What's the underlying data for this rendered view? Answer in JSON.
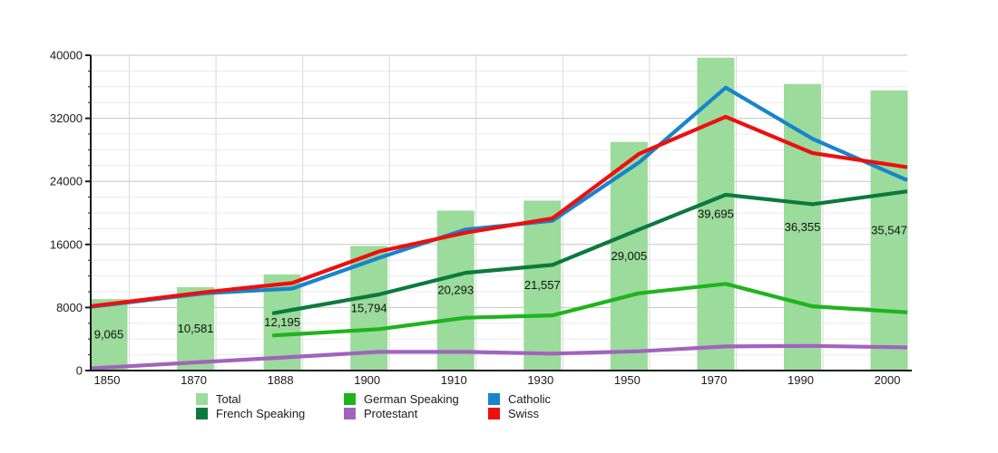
{
  "chart_data": {
    "type": "bar+line",
    "title": "",
    "xlabel": "",
    "ylabel": "",
    "x_tick_labels": [
      "1850",
      "1870",
      "1888",
      "1900",
      "1910",
      "1930",
      "1950",
      "1970",
      "1990",
      "2000"
    ],
    "y_tick_labels": [
      "0",
      "8000",
      "16000",
      "24000",
      "32000",
      "40000"
    ],
    "ylim": [
      0,
      40000
    ],
    "y_major_step": 8000,
    "y_minor_step": 2000,
    "grid": "horizontal major+minor, vertical per-category",
    "legend_position": "bottom",
    "bars": {
      "name": "Total",
      "color": "#9bdb9b",
      "values": [
        9065,
        10581,
        12195,
        15794,
        20293,
        21557,
        29005,
        39695,
        36355,
        35547
      ],
      "labels": [
        "9,065",
        "10,581",
        "12,195",
        "15,794",
        "20,293",
        "21,557",
        "29,005",
        "39,695",
        "36,355",
        "35,547"
      ]
    },
    "series": [
      {
        "name": "French Speaking",
        "color": "#0c7a3d",
        "values": [
          null,
          null,
          7700,
          9650,
          12400,
          13400,
          17900,
          22300,
          21100,
          22600
        ]
      },
      {
        "name": "German Speaking",
        "color": "#1eb41e",
        "values": [
          null,
          null,
          4600,
          5250,
          6700,
          7000,
          9800,
          11000,
          8150,
          7450
        ]
      },
      {
        "name": "Protestant",
        "color": "#a263bd",
        "values": [
          480,
          1100,
          1720,
          2370,
          2370,
          2150,
          2450,
          3060,
          3130,
          2950
        ]
      },
      {
        "name": "Catholic",
        "color": "#1884cb",
        "values": [
          8500,
          9800,
          10400,
          14300,
          17900,
          19000,
          26400,
          35900,
          29400,
          24600
        ]
      },
      {
        "name": "Swiss",
        "color": "#ee0f0f",
        "values": [
          8600,
          9950,
          11100,
          15100,
          17500,
          19300,
          27500,
          32200,
          27600,
          25950
        ]
      }
    ],
    "legend_rows": [
      [
        "Total",
        "German Speaking",
        "Catholic"
      ],
      [
        "French Speaking",
        "Protestant",
        "Swiss"
      ]
    ],
    "colors": {
      "Total": "#9bdb9b",
      "French Speaking": "#0c7a3d",
      "German Speaking": "#1eb41e",
      "Protestant": "#a263bd",
      "Catholic": "#1884cb",
      "Swiss": "#ee0f0f",
      "axis": "#1a1a1a",
      "grid_major": "#c5c5c5",
      "grid_minor": "#ebebeb",
      "grid_vertical": "#d9d9d9",
      "label_text": "#111111"
    }
  }
}
